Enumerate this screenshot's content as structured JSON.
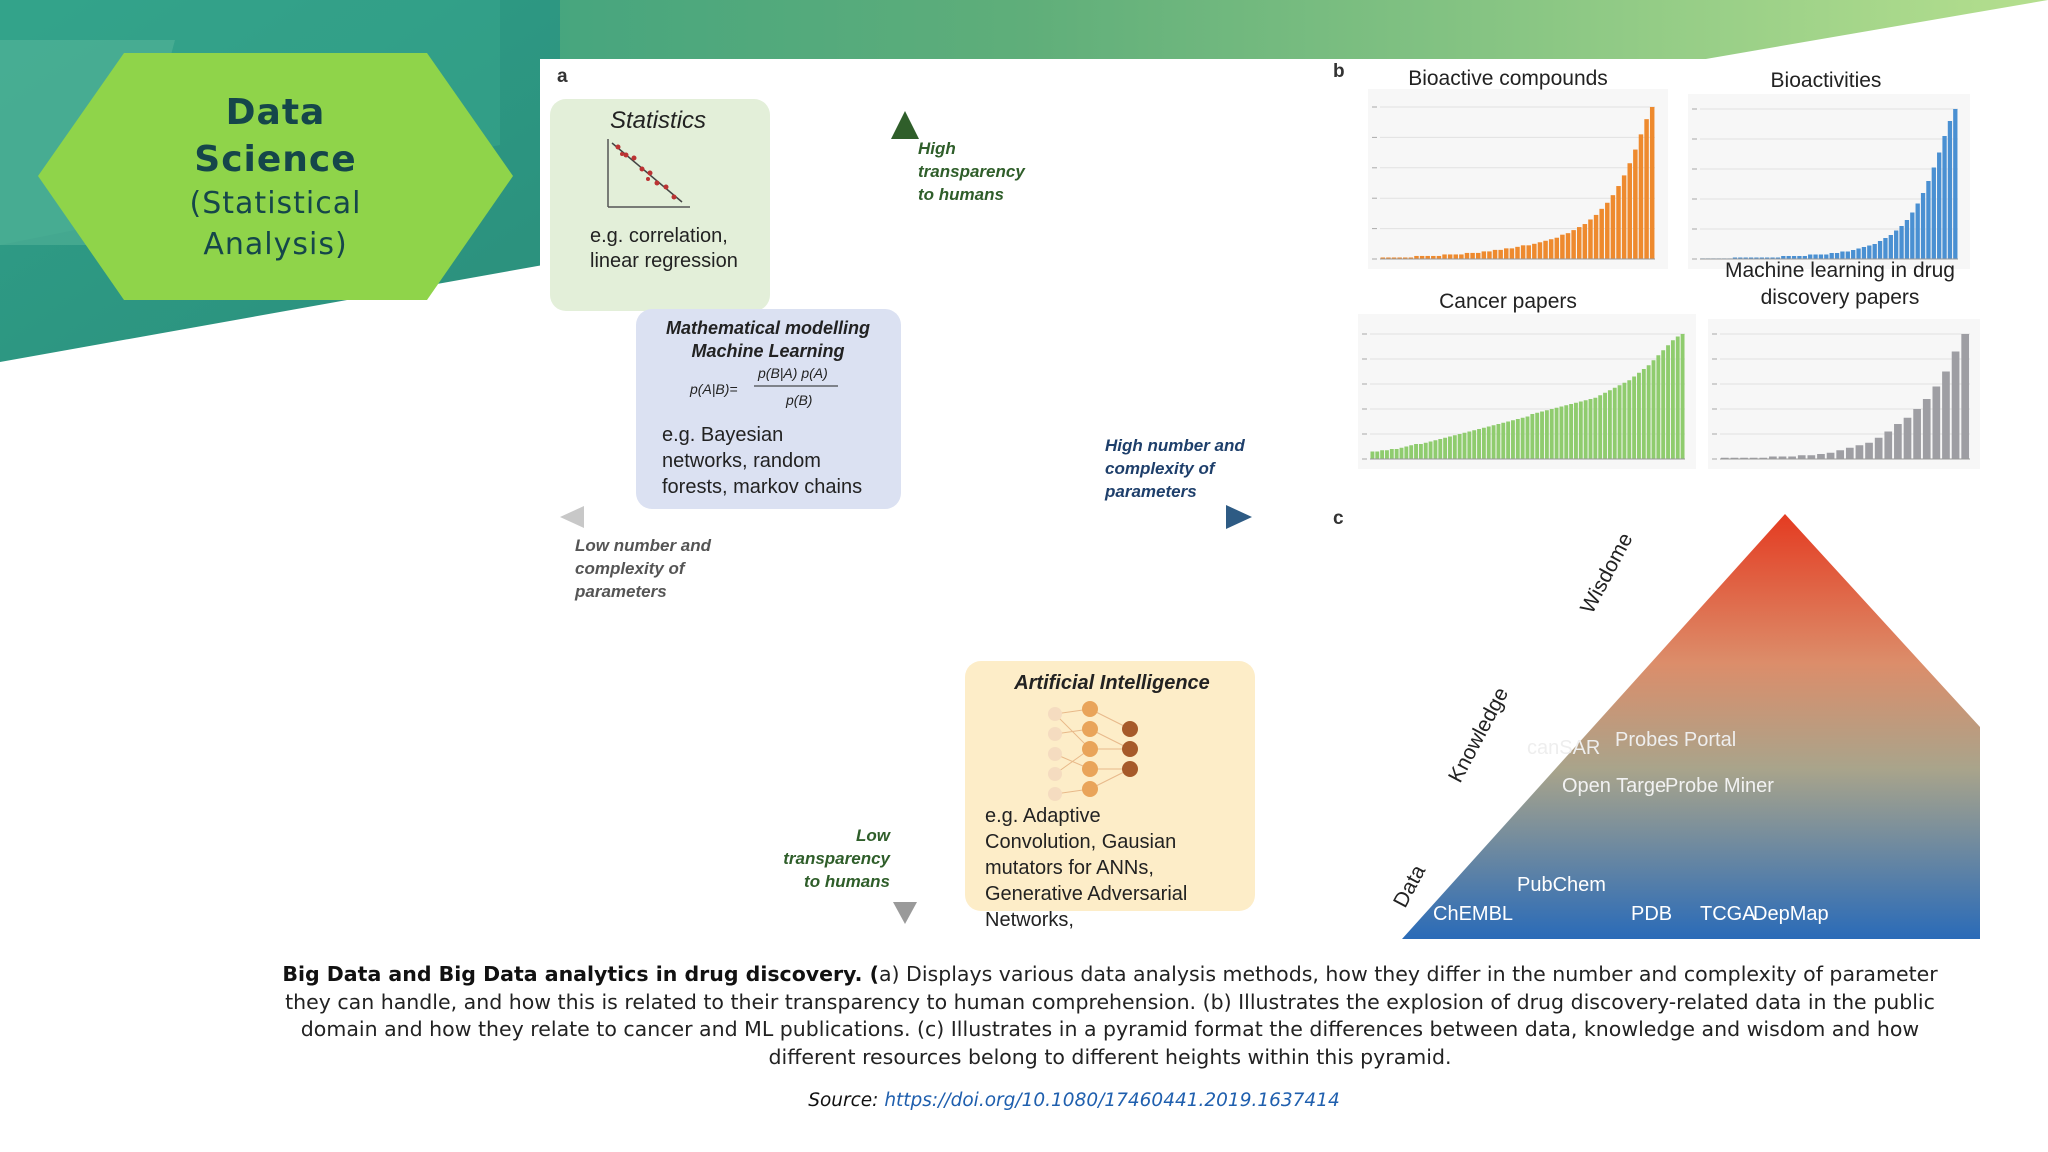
{
  "slide_label": {
    "line1": "Data",
    "line2": "Science",
    "line3": "(Statistical",
    "line4": "Analysis)"
  },
  "panel_a": {
    "letter": "a",
    "statistics": {
      "title": "Statistics",
      "example_1": "e.g. correlation,",
      "example_2": "linear regression"
    },
    "math_ml": {
      "title_1": "Mathematical modelling",
      "title_2": "Machine Learning",
      "formula_lhs": "p(A|B)=",
      "formula_num": "p(B|A) p(A)",
      "formula_den": "p(B)",
      "example_1": "e.g. Bayesian",
      "example_2": "networks, random",
      "example_3": "forests, markov chains"
    },
    "ai": {
      "title": "Artificial Intelligence",
      "example_1": "e.g. Adaptive",
      "example_2": "Convolution, Gausian",
      "example_3": "mutators for ANNs,",
      "example_4": "Generative Adversarial",
      "example_5": "Networks,"
    },
    "axis_top": {
      "l1": "High",
      "l2": "transparency",
      "l3": "to humans"
    },
    "axis_bottom": {
      "l1": "Low",
      "l2": "transparency",
      "l3": "to humans"
    },
    "axis_right": {
      "l1": "High number and",
      "l2": "complexity of",
      "l3": "parameters"
    },
    "axis_left": {
      "l1": "Low number and",
      "l2": "complexity of",
      "l3": "parameters"
    }
  },
  "panel_b": {
    "letter": "b"
  },
  "panel_c": {
    "letter": "c",
    "levels": {
      "wisdom": "Wisdome",
      "knowledge": "Knowledge",
      "data": "Data"
    },
    "resources": {
      "cansar": "canSAR",
      "probes_portal": "Probes Portal",
      "open_targets": "Open Targe",
      "probe_miner": "Probe Miner",
      "pubchem": "PubChem",
      "chembl": "ChEMBL",
      "pdb": "PDB",
      "tcga": "TCGA",
      "depmap": "DepMap"
    }
  },
  "chart_data": [
    {
      "type": "bar",
      "title": "Bioactive compounds",
      "color": "#ee8a2e",
      "values": [
        1,
        1,
        1,
        1,
        1,
        1,
        2,
        2,
        2,
        2,
        2,
        3,
        3,
        3,
        3,
        4,
        4,
        4,
        5,
        5,
        6,
        6,
        7,
        7,
        8,
        9,
        9,
        10,
        11,
        12,
        13,
        14,
        16,
        17,
        19,
        21,
        23,
        26,
        29,
        33,
        37,
        42,
        48,
        55,
        63,
        72,
        82,
        92,
        100
      ]
    },
    {
      "type": "bar",
      "title": "Bioactivities",
      "color": "#4a90d2",
      "values": [
        0,
        0,
        0,
        0,
        0,
        0,
        1,
        1,
        1,
        1,
        1,
        1,
        1,
        1,
        1,
        2,
        2,
        2,
        2,
        2,
        3,
        3,
        3,
        3,
        4,
        4,
        5,
        5,
        6,
        7,
        8,
        9,
        10,
        12,
        14,
        16,
        19,
        22,
        26,
        31,
        37,
        44,
        52,
        61,
        71,
        82,
        92,
        100
      ]
    },
    {
      "type": "bar",
      "title": "Cancer papers",
      "color": "#8fcc6e",
      "values": [
        6,
        6,
        7,
        7,
        8,
        8,
        9,
        10,
        11,
        12,
        12,
        13,
        14,
        15,
        16,
        17,
        18,
        19,
        20,
        21,
        22,
        23,
        24,
        25,
        26,
        27,
        28,
        29,
        30,
        31,
        32,
        33,
        34,
        36,
        37,
        38,
        39,
        40,
        41,
        42,
        43,
        44,
        45,
        46,
        47,
        48,
        49,
        51,
        53,
        55,
        57,
        59,
        61,
        63,
        66,
        69,
        72,
        75,
        79,
        83,
        87,
        91,
        95,
        98,
        100
      ]
    },
    {
      "type": "bar",
      "title": "Machine learning in drug discovery papers",
      "title_l1": "Machine learning in drug",
      "title_l2": "discovery papers",
      "color": "#9e9ea3",
      "values": [
        1,
        1,
        1,
        1,
        1,
        2,
        2,
        2,
        3,
        3,
        4,
        5,
        7,
        9,
        11,
        13,
        17,
        22,
        28,
        33,
        40,
        48,
        58,
        70,
        86,
        100
      ]
    }
  ],
  "caption": {
    "bold": "Big Data and Big Data analytics in drug discovery. (",
    "text": "a) Displays various data analysis methods, how they differ in the number and complexity of parameter they can handle, and how this is related to their transparency to human comprehension. (b) Illustrates the explosion of drug discovery-related data in the public domain and how they relate to cancer and ML publications. (c) Illustrates in a pyramid format the differences between data, knowledge and wisdom and how different resources belong to different heights within this pyramid."
  },
  "source": {
    "label": "Source:",
    "link": "https://doi.org/10.1080/17460441.2019.1637414"
  },
  "colors": {
    "hexagon": "#8fd44a",
    "teal": "#2e9a86",
    "green_light": "#a5d88a",
    "caption_link": "#1f5fae"
  }
}
